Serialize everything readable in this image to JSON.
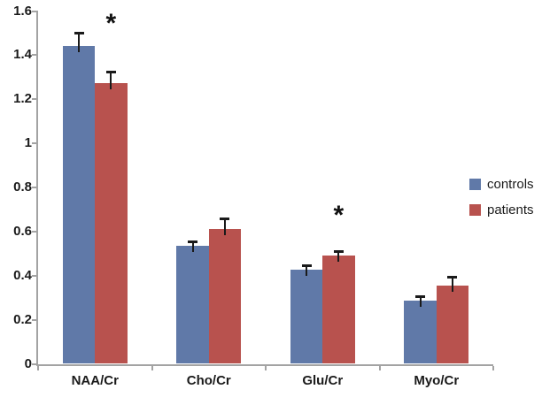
{
  "chart_data": {
    "type": "bar",
    "title": "",
    "xlabel": "",
    "ylabel": "",
    "categories": [
      "NAA/Cr",
      "Cho/Cr",
      "Glu/Cr",
      "Myo/Cr"
    ],
    "series": [
      {
        "name": "controls",
        "color": "#6079A8",
        "values": [
          1.44,
          0.535,
          0.425,
          0.285
        ],
        "errors": [
          0.06,
          0.018,
          0.022,
          0.02
        ]
      },
      {
        "name": "patients",
        "color": "#B8524E",
        "values": [
          1.27,
          0.61,
          0.49,
          0.355
        ],
        "errors": [
          0.055,
          0.05,
          0.022,
          0.04
        ]
      }
    ],
    "annotations": [
      {
        "label": "*",
        "category_index": 0,
        "series_index": 1,
        "y_value": 1.56
      },
      {
        "label": "*",
        "category_index": 2,
        "series_index": 1,
        "y_value": 0.69
      }
    ],
    "y_axis": {
      "min": 0,
      "max": 1.6,
      "step": 0.2,
      "tick_labels": [
        "0",
        "0.2",
        "0.4",
        "0.6",
        "0.8",
        "1",
        "1.2",
        "1.4",
        "1.6"
      ]
    },
    "x_axis": {
      "tick_labels": [
        "NAA/Cr",
        "Cho/Cr",
        "Glu/Cr",
        "Myo/Cr"
      ]
    },
    "legend": {
      "position": "right",
      "entries": [
        "controls",
        "patients"
      ]
    },
    "grid": false,
    "error_bars": "upper",
    "colors": {
      "axis": "#A3A3A3",
      "text": "#1A1A1A",
      "error_bar": "#1A1A1A",
      "background": "#FFFFFF"
    }
  }
}
